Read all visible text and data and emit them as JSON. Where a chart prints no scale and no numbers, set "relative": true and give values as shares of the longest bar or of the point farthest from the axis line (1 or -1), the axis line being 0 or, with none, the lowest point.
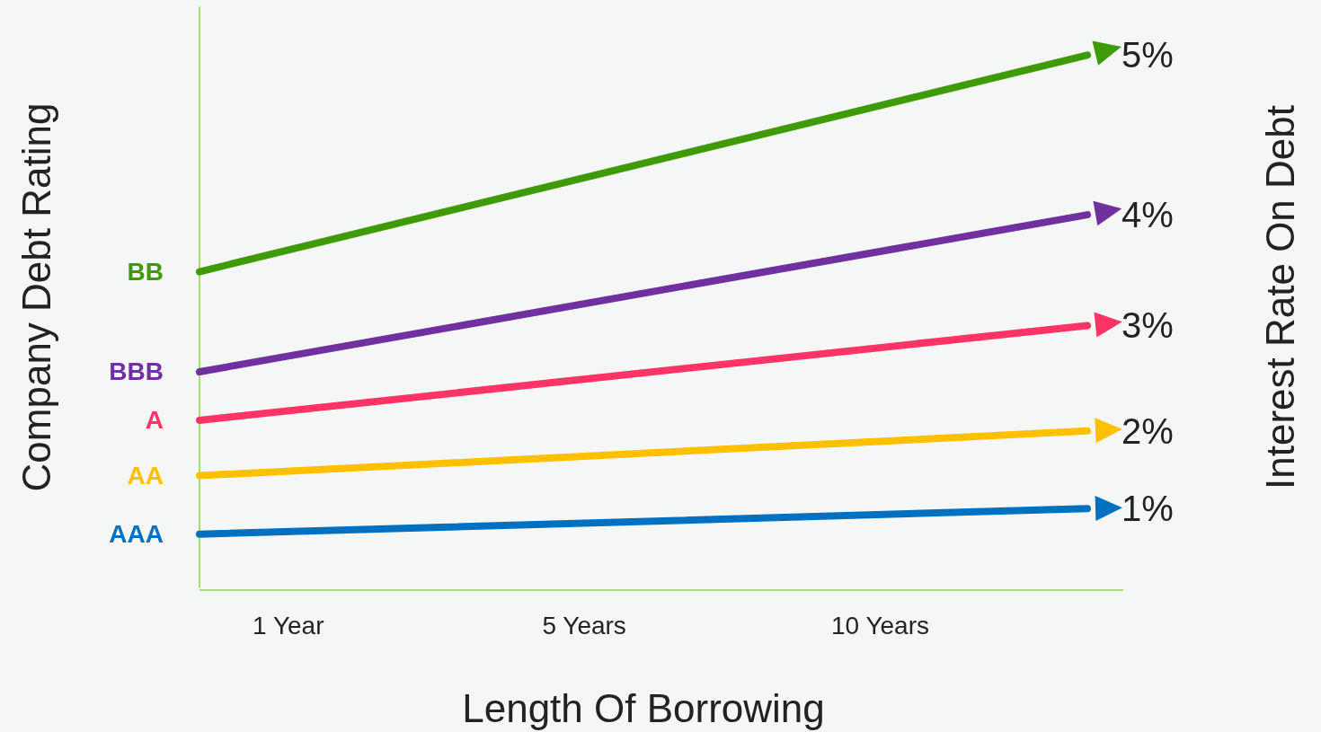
{
  "chart_data": {
    "type": "line",
    "relative": true,
    "xlabel": "Length Of Borrowing",
    "ylabel": "Company Debt Rating",
    "y2label": "Interest Rate On Debt",
    "categories": [
      null,
      null,
      null,
      "1 Year",
      null,
      null,
      null,
      null,
      null,
      null,
      null,
      null,
      null,
      "5 Years",
      null,
      null,
      null,
      null,
      null,
      null,
      null,
      null,
      null,
      "10 Years",
      null,
      null,
      null,
      null,
      null,
      null,
      null
    ],
    "annotations": [
      "5%",
      "4%",
      "3%",
      "2%",
      "1%"
    ],
    "series": [
      {
        "name": "BB",
        "color": "#3f9a06",
        "values": [
          0.593,
          null,
          null,
          null,
          null,
          null,
          null,
          null,
          null,
          null,
          null,
          null,
          null,
          null,
          null,
          null,
          null,
          null,
          null,
          null,
          null,
          null,
          null,
          null,
          null,
          null,
          null,
          null,
          null,
          null,
          1
        ]
      },
      {
        "name": "BBB",
        "color": "#7030a0",
        "values": [
          0.405,
          null,
          null,
          null,
          null,
          null,
          null,
          null,
          null,
          null,
          null,
          null,
          null,
          null,
          null,
          null,
          null,
          null,
          null,
          null,
          null,
          null,
          null,
          null,
          null,
          null,
          null,
          null,
          null,
          null,
          0.7
        ]
      },
      {
        "name": "A",
        "color": "#ff3366",
        "values": [
          0.314,
          null,
          null,
          null,
          null,
          null,
          null,
          null,
          null,
          null,
          null,
          null,
          null,
          null,
          null,
          null,
          null,
          null,
          null,
          null,
          null,
          null,
          null,
          null,
          null,
          null,
          null,
          null,
          null,
          null,
          0.492
        ]
      },
      {
        "name": "AA",
        "color": "#ffc000",
        "values": [
          0.21,
          null,
          null,
          null,
          null,
          null,
          null,
          null,
          null,
          null,
          null,
          null,
          null,
          null,
          null,
          null,
          null,
          null,
          null,
          null,
          null,
          null,
          null,
          null,
          null,
          null,
          null,
          null,
          null,
          null,
          0.294
        ]
      },
      {
        "name": "AAA",
        "color": "#0070c0",
        "values": [
          0.1,
          null,
          null,
          null,
          null,
          null,
          null,
          null,
          null,
          null,
          null,
          null,
          null,
          null,
          null,
          null,
          null,
          null,
          null,
          null,
          null,
          null,
          null,
          null,
          null,
          null,
          null,
          null,
          null,
          null,
          0.148
        ]
      }
    ]
  }
}
